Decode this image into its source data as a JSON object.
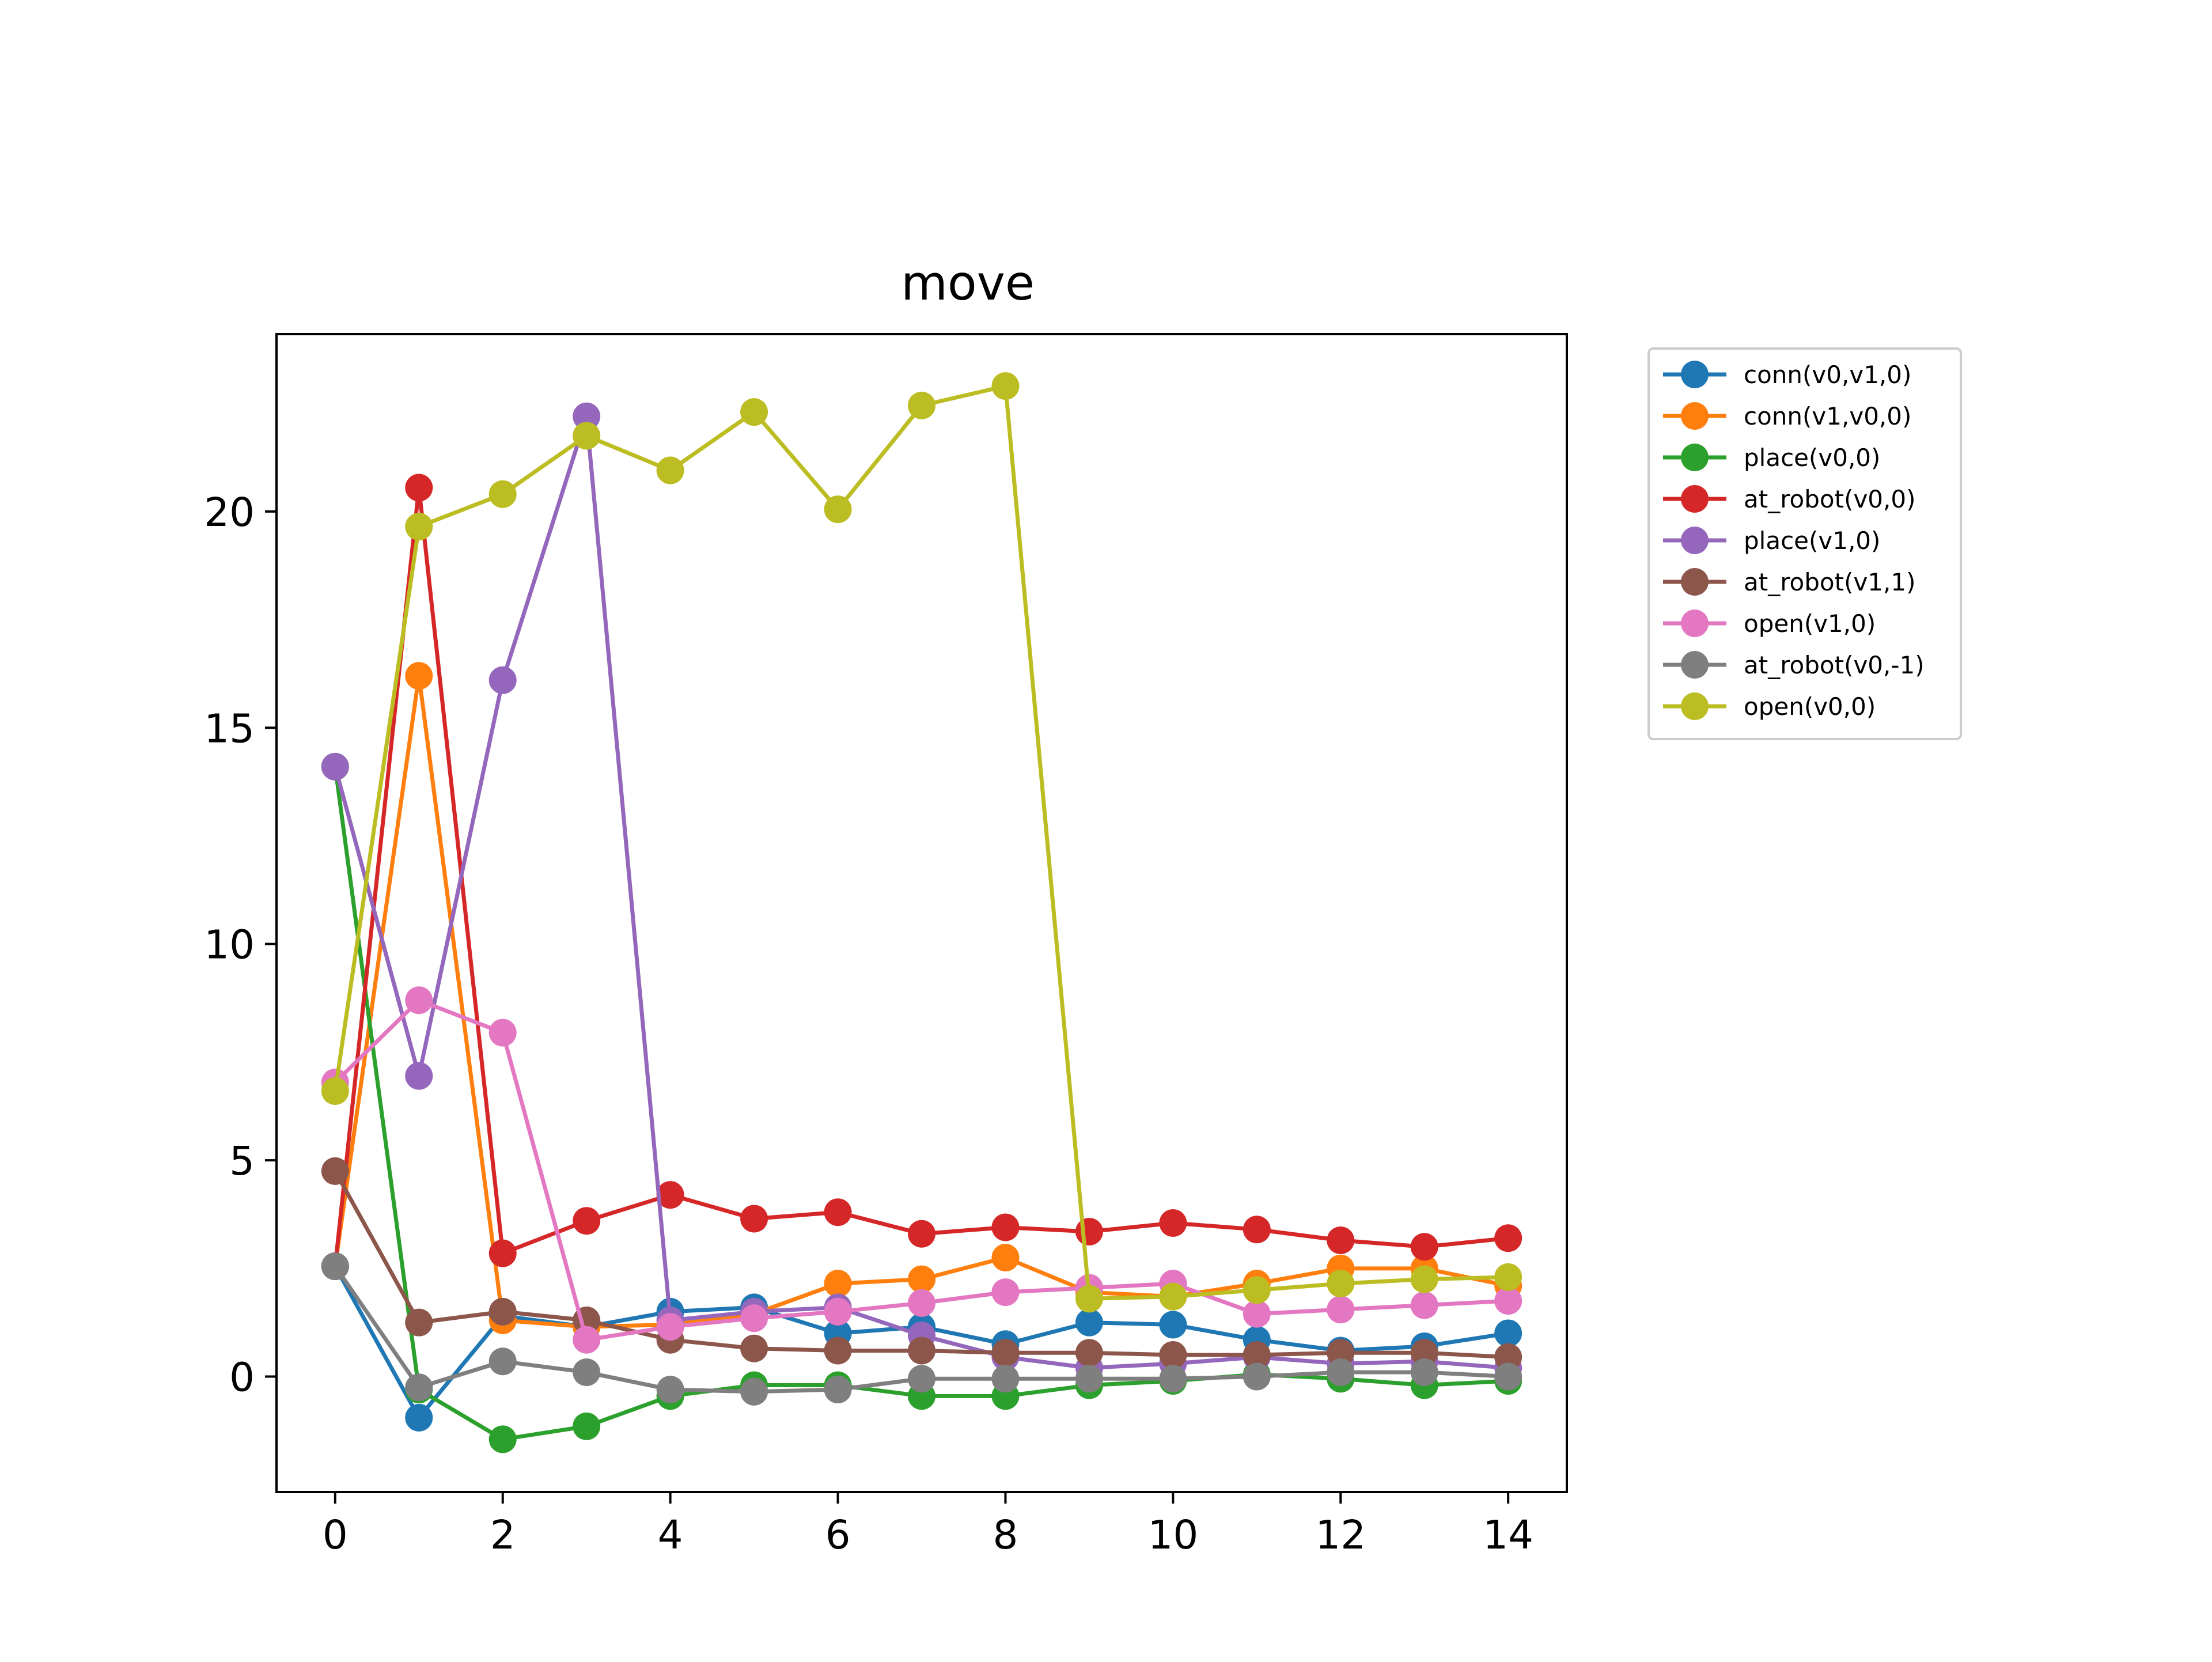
{
  "chart_data": {
    "type": "line",
    "title": "move",
    "xlabel": "",
    "ylabel": "",
    "xlim": [
      -0.7,
      14.7
    ],
    "ylim": [
      -2.67,
      24.1
    ],
    "x_ticks": [
      0,
      2,
      4,
      6,
      8,
      10,
      12,
      14
    ],
    "y_ticks": [
      0,
      5,
      10,
      15,
      20
    ],
    "grid": false,
    "legend_position": "outside-top-right",
    "x": [
      0,
      1,
      2,
      3,
      4,
      5,
      6,
      7,
      8,
      9,
      10,
      11,
      12,
      13,
      14
    ],
    "series": [
      {
        "name": "conn(v0,v1,0)",
        "color": "#1f77b4",
        "values": [
          2.55,
          -0.95,
          1.4,
          1.15,
          1.5,
          1.6,
          1.0,
          1.15,
          0.75,
          1.25,
          1.2,
          0.85,
          0.6,
          0.7,
          1.0
        ]
      },
      {
        "name": "conn(v1,v0,0)",
        "color": "#ff7f0e",
        "values": [
          2.55,
          16.2,
          1.3,
          1.15,
          1.2,
          1.45,
          2.15,
          2.25,
          2.75,
          1.95,
          1.85,
          2.15,
          2.5,
          2.5,
          2.1
        ]
      },
      {
        "name": "place(v0,0)",
        "color": "#2ca02c",
        "values": [
          14.1,
          -0.3,
          -1.45,
          -1.15,
          -0.45,
          -0.2,
          -0.2,
          -0.45,
          -0.45,
          -0.2,
          -0.1,
          0.05,
          -0.05,
          -0.2,
          -0.1
        ]
      },
      {
        "name": "at_robot(v0,0)",
        "color": "#d62728",
        "values": [
          2.55,
          20.55,
          2.85,
          3.6,
          4.2,
          3.65,
          3.8,
          3.3,
          3.45,
          3.35,
          3.55,
          3.4,
          3.15,
          3.0,
          3.2
        ]
      },
      {
        "name": "place(v1,0)",
        "color": "#9467bd",
        "values": [
          14.1,
          6.95,
          16.1,
          22.2,
          1.3,
          1.5,
          1.6,
          0.95,
          0.45,
          0.2,
          0.3,
          0.45,
          0.3,
          0.35,
          0.2
        ]
      },
      {
        "name": "at_robot(v1,1)",
        "color": "#8c564b",
        "values": [
          4.75,
          1.25,
          1.5,
          1.3,
          0.85,
          0.65,
          0.6,
          0.6,
          0.55,
          0.55,
          0.5,
          0.5,
          0.55,
          0.55,
          0.45
        ]
      },
      {
        "name": "open(v1,0)",
        "color": "#e377c2",
        "values": [
          6.8,
          8.7,
          7.95,
          0.85,
          1.15,
          1.35,
          1.5,
          1.7,
          1.95,
          2.05,
          2.15,
          1.45,
          1.55,
          1.65,
          1.75
        ]
      },
      {
        "name": "at_robot(v0,-1)",
        "color": "#7f7f7f",
        "values": [
          2.55,
          -0.25,
          0.35,
          0.1,
          -0.3,
          -0.35,
          -0.3,
          -0.05,
          -0.05,
          -0.05,
          -0.05,
          0.0,
          0.1,
          0.1,
          0.0
        ]
      },
      {
        "name": "open(v0,0)",
        "color": "#bcbd22",
        "values": [
          6.6,
          19.65,
          20.4,
          21.75,
          20.95,
          22.3,
          20.05,
          22.45,
          22.9,
          1.8,
          1.85,
          2.0,
          2.15,
          2.25,
          2.3
        ]
      }
    ]
  }
}
